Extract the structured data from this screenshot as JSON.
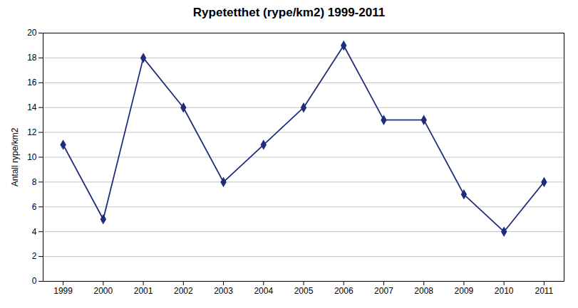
{
  "chart_data": {
    "type": "line",
    "title": "Rypetetthet (rype/km2) 1999-2011",
    "ylabel": "Antall rype/km2",
    "x": [
      1999,
      2000,
      2001,
      2002,
      2003,
      2004,
      2005,
      2006,
      2007,
      2008,
      2009,
      2010,
      2011
    ],
    "values": [
      11,
      5,
      18,
      14,
      8,
      11,
      14,
      19,
      13,
      13,
      7,
      4,
      8
    ],
    "color": "#1F2D7B",
    "marker": "diamond",
    "xlim": [
      1998.5,
      2011.5
    ],
    "xticks": [
      1999,
      2000,
      2001,
      2002,
      2003,
      2004,
      2005,
      2006,
      2007,
      2008,
      2009,
      2010,
      2011
    ],
    "ylim": [
      0,
      20
    ],
    "yticks": [
      0,
      2,
      4,
      6,
      8,
      10,
      12,
      14,
      16,
      18,
      20
    ],
    "grid": true
  }
}
